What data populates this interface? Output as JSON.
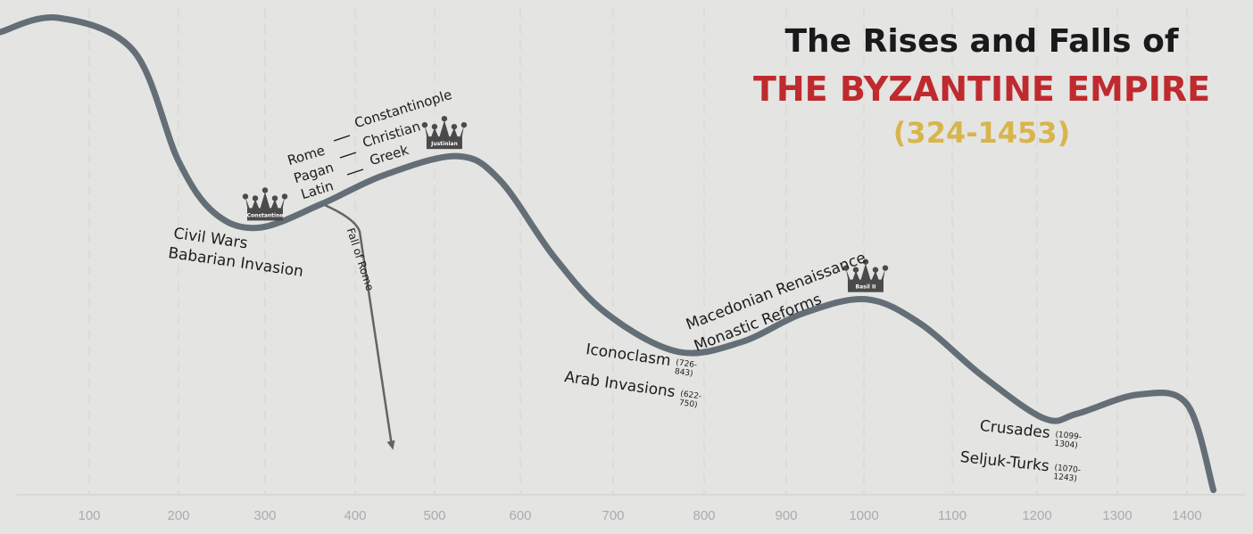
{
  "title": {
    "line1": "The Rises and Falls of",
    "line2": "THE BYZANTINE EMPIRE",
    "line3": "(324-1453)"
  },
  "colors": {
    "curve": "#646e76",
    "title_red": "#bf2a2f",
    "title_gold": "#d8b54c",
    "background": "#e4e4e2",
    "crown": "#4a4a4a"
  },
  "chart_data": {
    "type": "line",
    "xlabel": "",
    "ylabel": "",
    "x_ticks": [
      100,
      200,
      300,
      400,
      500,
      600,
      700,
      800,
      900,
      1000,
      1100,
      1200,
      1300,
      1400
    ],
    "grid": "vertical dashed",
    "series": [
      {
        "x": [
          0,
          65,
          150,
          200,
          242,
          293,
          363,
          436,
          526,
          576,
          636,
          693,
          771,
          845,
          921,
          1002,
          1063,
          1135,
          1209,
          1250,
          1330,
          1400,
          1438
        ],
        "y": [
          97,
          100,
          93,
          70,
          59,
          56,
          61,
          67,
          71,
          66,
          50,
          38,
          30,
          32,
          38,
          41,
          36,
          25,
          16,
          17,
          21,
          19,
          1
        ]
      }
    ],
    "branch": {
      "label": "Fall of Rome",
      "x": [
        363,
        400,
        450
      ],
      "y": [
        61,
        58,
        38
      ]
    },
    "rulers": [
      {
        "name": "Constantine",
        "year": 300
      },
      {
        "name": "Justinian",
        "year": 527
      },
      {
        "name": "Basil II",
        "year": 1002
      }
    ],
    "annotations": {
      "civil_wars": "Civil Wars",
      "babarian": "Babarian Invasion",
      "rome": "Rome",
      "constantinople": "Constantinople",
      "pagan": "Pagan",
      "christian": "Christian",
      "latin": "Latin",
      "greek": "Greek",
      "fall_of_rome": "Fall of Rome",
      "iconoclasm": "Iconoclasm",
      "iconoclasm_dates": "(726-843)",
      "arab": "Arab Invasions",
      "arab_dates": "(622-750)",
      "macedonian": "Macedonian Renaissance",
      "monastic": "Monastic Reforms",
      "crusades": "Crusades",
      "crusades_dates": "(1099-1304)",
      "seljuk": "Seljuk-Turks",
      "seljuk_dates": "(1070-1243)"
    }
  }
}
